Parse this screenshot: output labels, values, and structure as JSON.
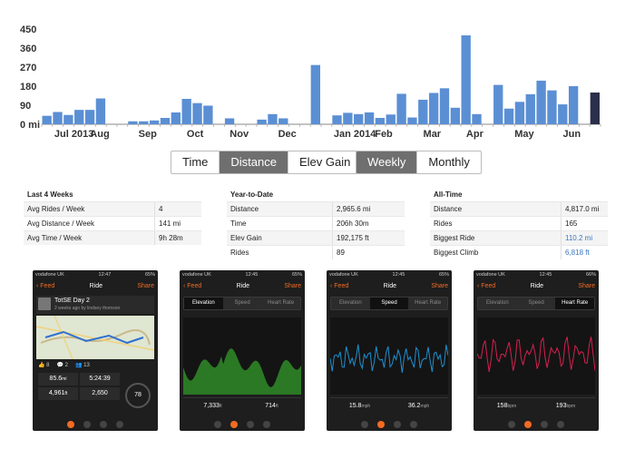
{
  "chart_data": {
    "type": "bar",
    "title": "",
    "ylabel": "",
    "yticks": [
      "450",
      "360",
      "270",
      "180",
      "90",
      "0 mi"
    ],
    "ylim": [
      0,
      450
    ],
    "month_labels": [
      "Jul 2013",
      "Aug",
      "Sep",
      "Oct",
      "Nov",
      "Dec",
      "Jan 2014",
      "Feb",
      "Mar",
      "Apr",
      "May",
      "Jun"
    ],
    "values": [
      40,
      58,
      44,
      68,
      68,
      122,
      0,
      0,
      14,
      14,
      18,
      30,
      56,
      120,
      100,
      88,
      0,
      28,
      0,
      0,
      22,
      48,
      28,
      0,
      0,
      280,
      0,
      42,
      54,
      48,
      56,
      30,
      46,
      144,
      32,
      116,
      148,
      170,
      78,
      420,
      48,
      0,
      186,
      74,
      106,
      142,
      206,
      160,
      94,
      180,
      0,
      150
    ],
    "highlight_color": "#2a2f4a",
    "bar_color": "#5b8fd4"
  },
  "metric_toggle": {
    "options": [
      "Time",
      "Distance",
      "Elev Gain"
    ],
    "active": "Distance"
  },
  "period_toggle": {
    "options": [
      "Weekly",
      "Monthly"
    ],
    "active": "Weekly"
  },
  "last4": {
    "title": "Last 4 Weeks",
    "rows": [
      {
        "label": "Avg Rides / Week",
        "value": "4"
      },
      {
        "label": "Avg Distance / Week",
        "value": "141 mi"
      },
      {
        "label": "Avg Time / Week",
        "value": "9h 28m"
      }
    ]
  },
  "ytd": {
    "title": "Year-to-Date",
    "rows": [
      {
        "label": "Distance",
        "value": "2,965.6 mi"
      },
      {
        "label": "Time",
        "value": "206h 30m"
      },
      {
        "label": "Elev Gain",
        "value": "192,175 ft"
      },
      {
        "label": "Rides",
        "value": "89"
      }
    ]
  },
  "alltime": {
    "title": "All-Time",
    "rows": [
      {
        "label": "Distance",
        "value": "4,817.0 mi"
      },
      {
        "label": "Rides",
        "value": "165"
      },
      {
        "label": "Biggest Ride",
        "value": "110.2 mi"
      },
      {
        "label": "Biggest Climb",
        "value": "6,818 ft"
      }
    ]
  },
  "phones": [
    {
      "carrier": "vodafone UK",
      "time": "12:47",
      "battery": "65%",
      "back": "Feed",
      "title": "Ride",
      "share": "Share",
      "ride_name": "TotSE Day 2",
      "ride_sub": "2 weeks ago by lindsey thomson",
      "kudos": "8",
      "comments": "2",
      "photos": "13",
      "stats": [
        [
          "85.6",
          "mi"
        ],
        [
          "5:24:39",
          ""
        ],
        [
          "4,961",
          "ft"
        ],
        [
          "2,650",
          ""
        ]
      ],
      "score": "78"
    },
    {
      "carrier": "vodafone UK",
      "time": "12:45",
      "battery": "65%",
      "back": "Feed",
      "title": "Ride",
      "share": "Share",
      "tabs": [
        "Elevation",
        "Speed",
        "Heart Rate"
      ],
      "active_tab": "Elevation",
      "metric_a": "7,333",
      "unit_a": "ft",
      "metric_b": "714",
      "unit_b": "ft",
      "line_color": "#2f8b28"
    },
    {
      "carrier": "vodafone UK",
      "time": "12:45",
      "battery": "65%",
      "back": "Feed",
      "title": "Ride",
      "share": "Share",
      "tabs": [
        "Elevation",
        "Speed",
        "Heart Rate"
      ],
      "active_tab": "Speed",
      "metric_a": "15.8",
      "unit_a": "mph",
      "metric_b": "36.2",
      "unit_b": "mph",
      "line_color": "#1e8fcf"
    },
    {
      "carrier": "vodafone UK",
      "time": "12:45",
      "battery": "66%",
      "back": "Feed",
      "title": "Ride",
      "share": "Share",
      "tabs": [
        "Elevation",
        "Speed",
        "Heart Rate"
      ],
      "active_tab": "Heart Rate",
      "metric_a": "158",
      "unit_a": "bpm",
      "metric_b": "193",
      "unit_b": "bpm",
      "line_color": "#d6204e"
    }
  ]
}
